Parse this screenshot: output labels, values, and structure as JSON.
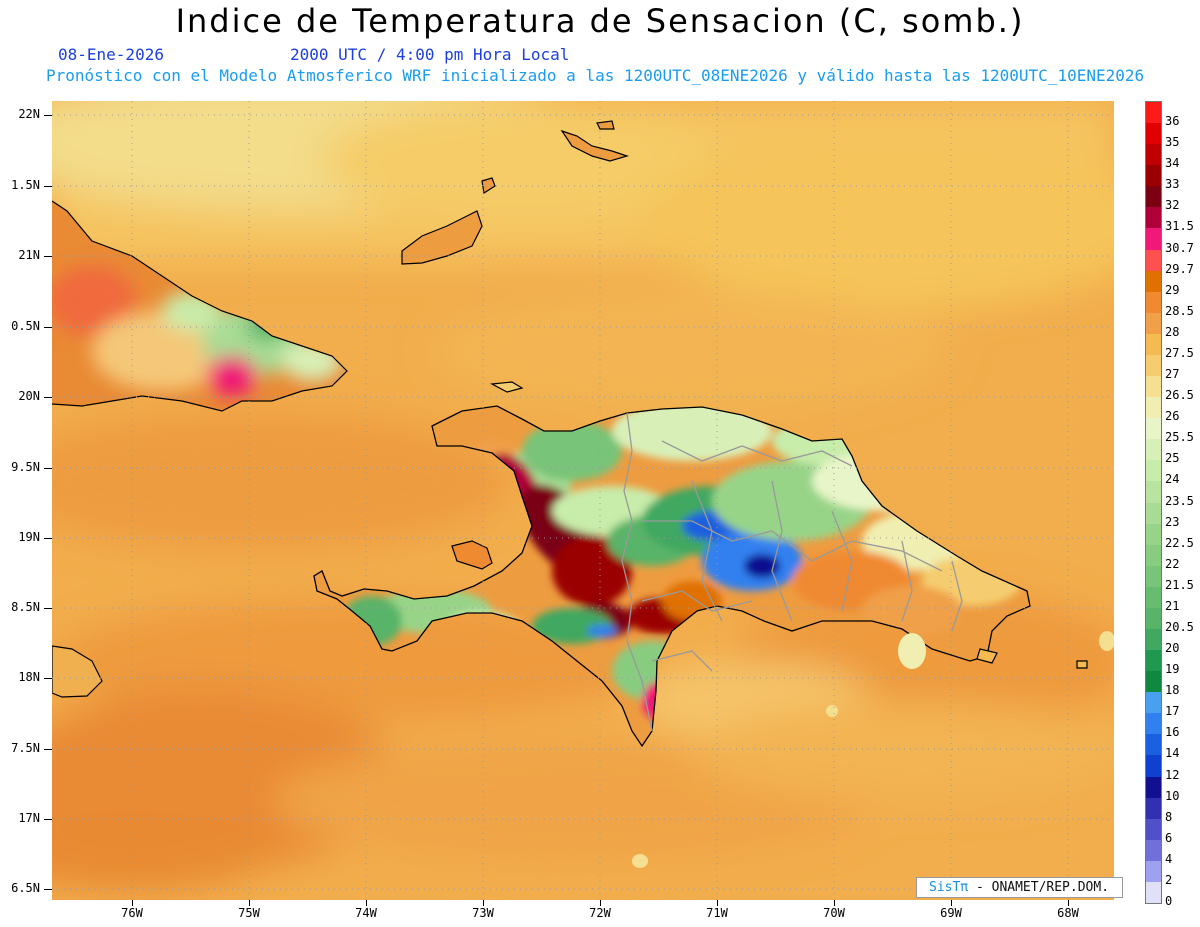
{
  "title": "Indice de Temperatura de Sensacion (C, somb.)",
  "date": "08-Ene-2026",
  "time": "2000 UTC / 4:00 pm Hora Local",
  "model": "Pronóstico con el Modelo Atmosferico WRF inicializado a las 1200UTC_08ENE2026 y válido hasta las  1200UTC_10ENE2026",
  "lat_labels": [
    "22N",
    "1.5N",
    "21N",
    "0.5N",
    "20N",
    "9.5N",
    "19N",
    "8.5N",
    "18N",
    "7.5N",
    "17N",
    "6.5N"
  ],
  "lon_labels": [
    "76W",
    "75W",
    "74W",
    "73W",
    "72W",
    "71W",
    "70W",
    "69W",
    "68W"
  ],
  "legend": {
    "labels": [
      "36",
      "35",
      "34",
      "33",
      "32",
      "31.5",
      "30.7",
      "29.7",
      "29",
      "28.5",
      "28",
      "27.5",
      "27",
      "26.5",
      "26",
      "25.5",
      "25",
      "24",
      "23.5",
      "23",
      "22.5",
      "22",
      "21.5",
      "21",
      "20.5",
      "20",
      "19",
      "18",
      "17",
      "16",
      "14",
      "12",
      "10",
      "8",
      "6",
      "4",
      "2",
      "0"
    ],
    "colors": [
      "#ff1a1a",
      "#e00000",
      "#c00000",
      "#9a0000",
      "#7a0012",
      "#b0003a",
      "#f01878",
      "#ff5050",
      "#e07000",
      "#f08a30",
      "#f0a048",
      "#f5bb50",
      "#f5cd70",
      "#f5df90",
      "#f0eeb0",
      "#e8f5c8",
      "#d8f0b8",
      "#c8ecaa",
      "#b8e4a0",
      "#a8dc94",
      "#98d488",
      "#88cc80",
      "#78c478",
      "#68bc70",
      "#58b468",
      "#40a860",
      "#209850",
      "#108840",
      "#4aa0f0",
      "#3080f0",
      "#1a60e0",
      "#1040d0",
      "#101090",
      "#3030b0",
      "#5050c8",
      "#7070d8",
      "#a0a0f0",
      "#e0e0f8"
    ]
  },
  "credit": {
    "sis": "SisTπ",
    "text": "- ONAMET/REP.DOM."
  },
  "colors": {
    "ocean_base": "#f0a848",
    "ocean_light": "#f5c060",
    "land_outline": "#000000",
    "province_border": "#999999"
  }
}
